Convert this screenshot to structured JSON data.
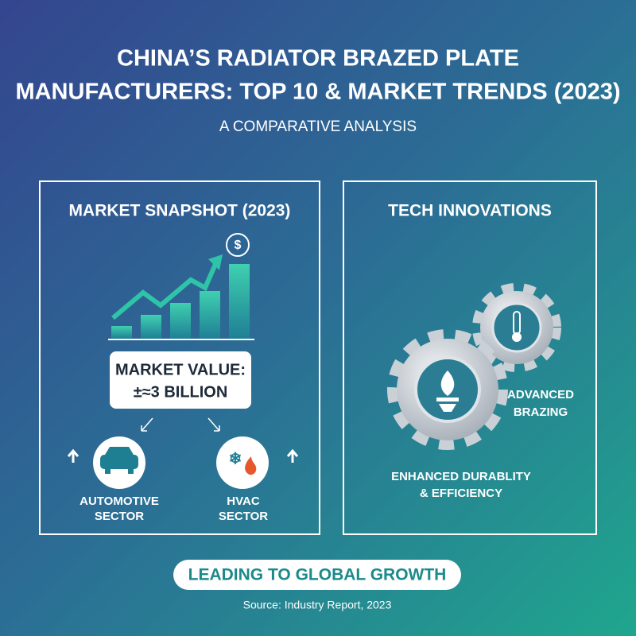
{
  "header": {
    "title_lines": [
      "CHINA’S RADIATOR BRAZED PLATE",
      "MANUFACTURERS: TOP 10 & MARKET TRENDS (2023)"
    ],
    "subtitle": "A COMPARATIVE ANALYSIS"
  },
  "market_snapshot": {
    "heading": "MARKET SNAPSHOT (2023)",
    "value_label": "MARKET VALUE:",
    "value": "±≈3 BILLION",
    "sectors": [
      {
        "label_lines": [
          "AUTOMOTIVE",
          "SECTOR"
        ]
      },
      {
        "label_lines": [
          "HVAC",
          "SECTOR"
        ]
      }
    ]
  },
  "tech_innovations": {
    "heading": "TECH INNOVATIONS",
    "items": [
      {
        "label_lines": [
          "ADVANCED",
          "BRAZING"
        ]
      },
      {
        "label_lines": [
          "ENHANCED DURABLITY",
          "& EFFICIENCY"
        ]
      }
    ]
  },
  "footer": {
    "banner": "LEADING TO GLOBAL GROWTH",
    "source": "Source: Industry Report, 2023"
  }
}
